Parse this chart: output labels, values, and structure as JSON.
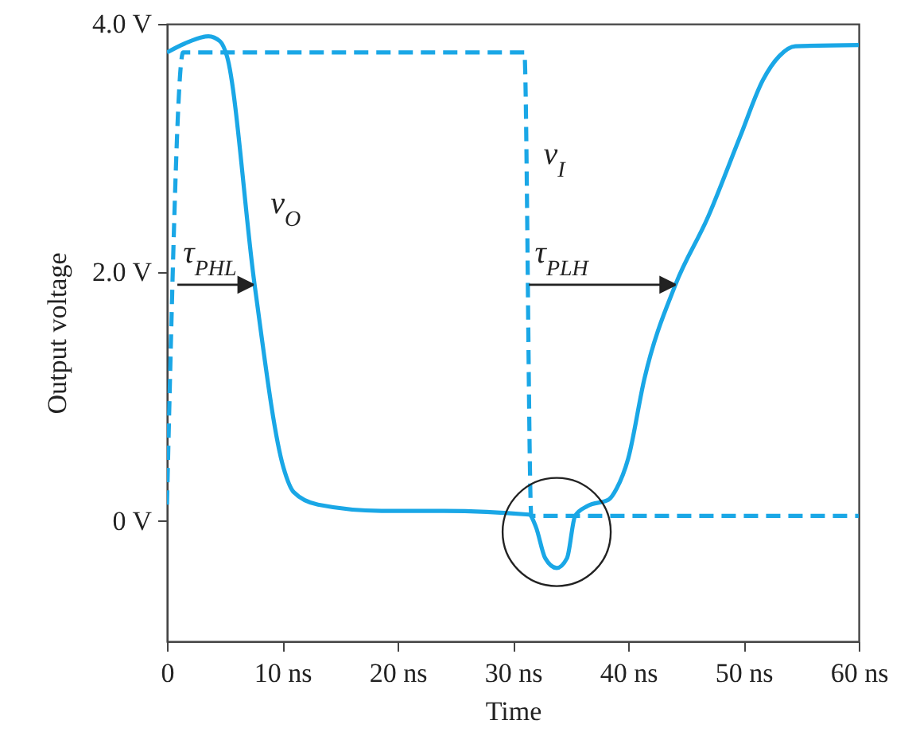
{
  "chart_data": {
    "type": "line",
    "xlabel": "Time",
    "ylabel": "Output voltage",
    "xlim": [
      0,
      60
    ],
    "ylim": [
      -0.97,
      4.0
    ],
    "xticks": [
      {
        "value": 0,
        "label": "0"
      },
      {
        "value": 10,
        "label": "10 ns"
      },
      {
        "value": 20,
        "label": "20 ns"
      },
      {
        "value": 30,
        "label": "30 ns"
      },
      {
        "value": 40,
        "label": "40 ns"
      },
      {
        "value": 50,
        "label": "50 ns"
      },
      {
        "value": 60,
        "label": "60 ns"
      }
    ],
    "yticks": [
      {
        "value": 0,
        "label": "0 V"
      },
      {
        "value": 2,
        "label": "2.0 V"
      },
      {
        "value": 4,
        "label": "4.0 V"
      }
    ],
    "marker": "none",
    "series": [
      {
        "name": "v$_{O}$",
        "color": "#1aa7e6",
        "line_style": "solid",
        "x": [
          0,
          1.5,
          3.6,
          4.6,
          5.2,
          7.6,
          10.1,
          11,
          13.1,
          18.6,
          24,
          31.4,
          32,
          32.8,
          33.8,
          34.7,
          35.4,
          36.5,
          38.3,
          39,
          40,
          41.4,
          44.1,
          46.9,
          49.7,
          51.7,
          53.1,
          54.5,
          60
        ],
        "values": [
          3.77,
          3.84,
          3.9,
          3.86,
          3.74,
          1.9,
          0.43,
          0.23,
          0.13,
          0.08,
          0.08,
          0.05,
          -0.05,
          -0.3,
          -0.38,
          -0.3,
          0.04,
          0.12,
          0.17,
          0.26,
          0.5,
          1.14,
          1.9,
          2.44,
          3.09,
          3.55,
          3.74,
          3.82,
          3.83
        ]
      },
      {
        "name": "v$_{I}$",
        "color": "#1aa7e6",
        "line_style": "dashed",
        "x": [
          0,
          1.4,
          31,
          31.6,
          60
        ],
        "values": [
          0.13,
          3.77,
          3.77,
          0.04,
          0.04
        ]
      }
    ],
    "annotations": [
      "τ$_{PHL}$",
      "τ$_{PLH}$"
    ]
  }
}
